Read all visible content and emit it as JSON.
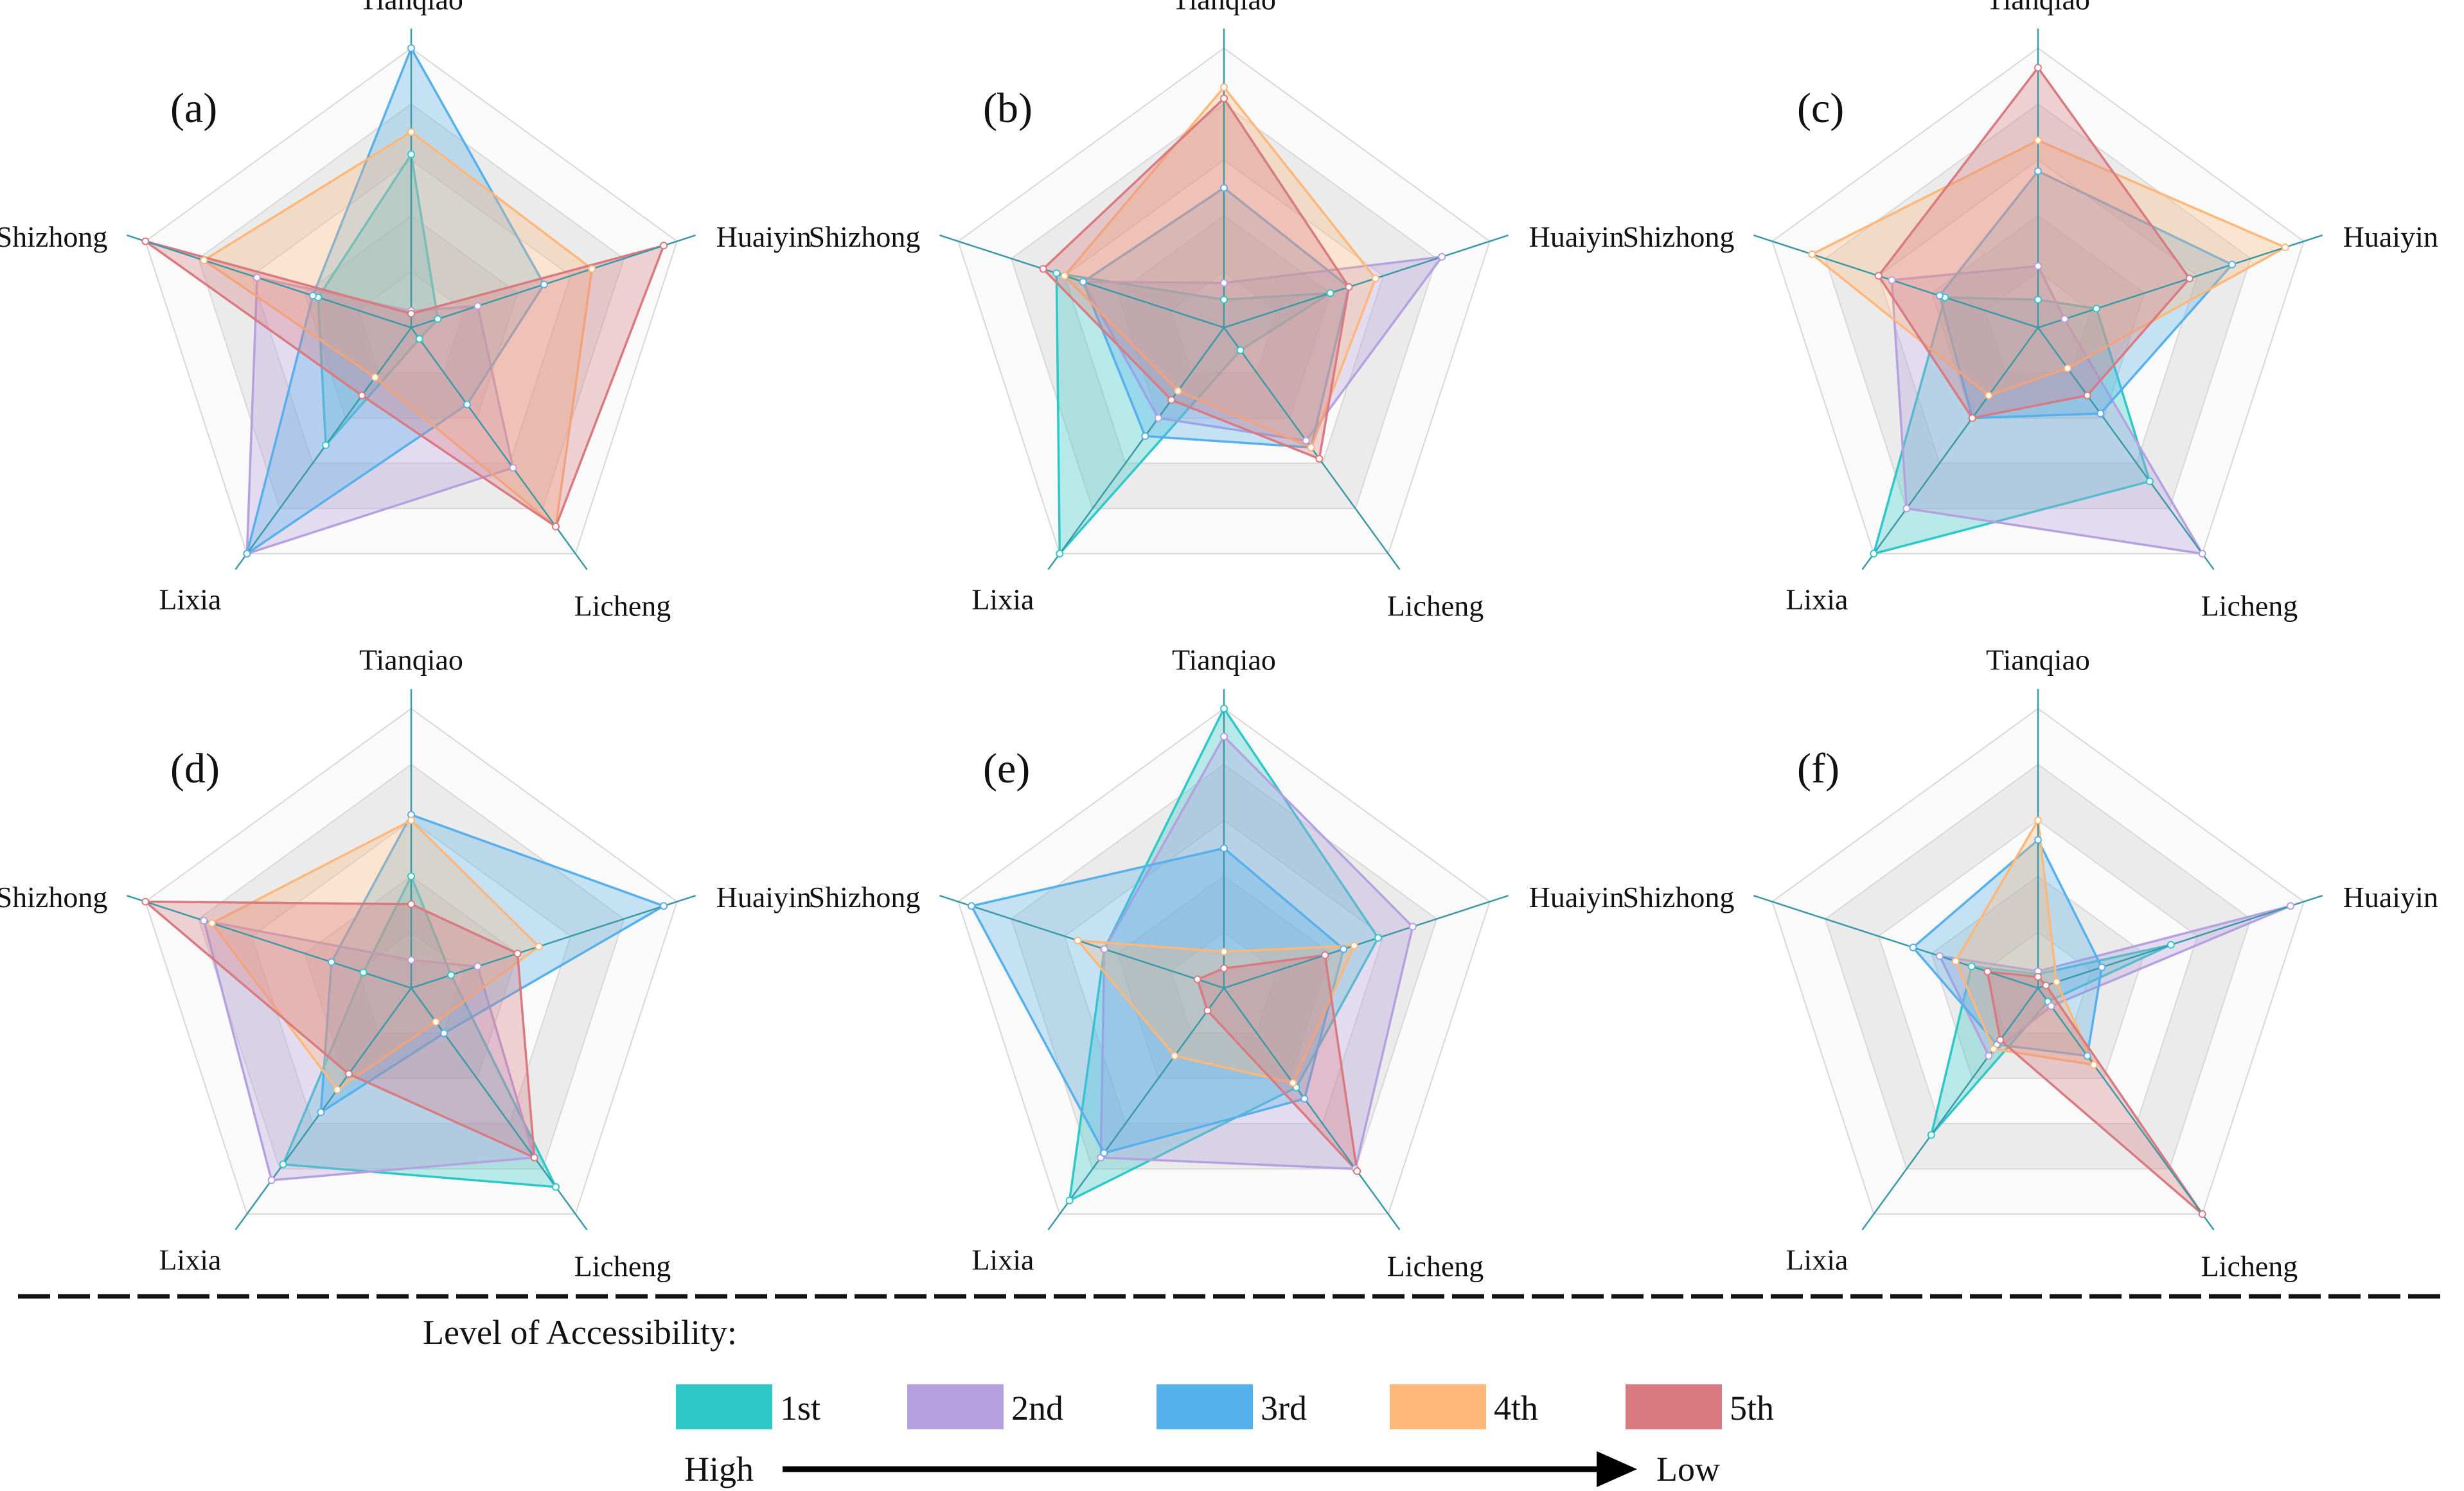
{
  "axes": [
    "Tianqiao",
    "Huaiyin",
    "Licheng",
    "Lixia",
    "Shizhong"
  ],
  "levels": [
    {
      "name": "1st",
      "color": "#2ec8c8"
    },
    {
      "name": "2nd",
      "color": "#b5a0e0"
    },
    {
      "name": "3rd",
      "color": "#56b0ec"
    },
    {
      "name": "4th",
      "color": "#ffb77a"
    },
    {
      "name": "5th",
      "color": "#d97a80"
    }
  ],
  "legend": {
    "title": "Level of Accessibility:",
    "high": "High",
    "low": "Low"
  },
  "chart_data": [
    {
      "type": "radar",
      "panel": "(a)",
      "axes": [
        "Tianqiao",
        "Huaiyin",
        "Licheng",
        "Lixia",
        "Shizhong"
      ],
      "range": [
        0,
        1
      ],
      "series": [
        {
          "name": "1st",
          "values": [
            0.62,
            0.1,
            0.05,
            0.52,
            0.35
          ]
        },
        {
          "name": "2nd",
          "values": [
            0.06,
            0.25,
            0.62,
            1.0,
            0.58
          ]
        },
        {
          "name": "3rd",
          "values": [
            1.0,
            0.5,
            0.34,
            1.0,
            0.37
          ]
        },
        {
          "name": "4th",
          "values": [
            0.7,
            0.68,
            0.88,
            0.22,
            0.78
          ]
        },
        {
          "name": "5th",
          "values": [
            0.05,
            0.95,
            0.88,
            0.3,
            1.0
          ]
        }
      ]
    },
    {
      "type": "radar",
      "panel": "(b)",
      "axes": [
        "Tianqiao",
        "Huaiyin",
        "Licheng",
        "Lixia",
        "Shizhong"
      ],
      "range": [
        0,
        1
      ],
      "series": [
        {
          "name": "1st",
          "values": [
            0.1,
            0.4,
            0.1,
            1.0,
            0.63
          ]
        },
        {
          "name": "2nd",
          "values": [
            0.16,
            0.82,
            0.5,
            0.4,
            0.53
          ]
        },
        {
          "name": "3rd",
          "values": [
            0.5,
            0.47,
            0.53,
            0.48,
            0.53
          ]
        },
        {
          "name": "4th",
          "values": [
            0.86,
            0.57,
            0.53,
            0.28,
            0.6
          ]
        },
        {
          "name": "5th",
          "values": [
            0.82,
            0.47,
            0.58,
            0.32,
            0.68
          ]
        }
      ]
    },
    {
      "type": "radar",
      "panel": "(c)",
      "axes": [
        "Tianqiao",
        "Huaiyin",
        "Licheng",
        "Lixia",
        "Shizhong"
      ],
      "range": [
        0,
        1
      ],
      "series": [
        {
          "name": "1st",
          "values": [
            0.1,
            0.22,
            0.68,
            1.0,
            0.35
          ]
        },
        {
          "name": "2nd",
          "values": [
            0.22,
            0.1,
            1.0,
            0.8,
            0.55
          ]
        },
        {
          "name": "3rd",
          "values": [
            0.56,
            0.73,
            0.38,
            0.4,
            0.37
          ]
        },
        {
          "name": "4th",
          "values": [
            0.67,
            0.93,
            0.18,
            0.3,
            0.85
          ]
        },
        {
          "name": "5th",
          "values": [
            0.93,
            0.57,
            0.3,
            0.4,
            0.6
          ]
        }
      ]
    },
    {
      "type": "radar",
      "panel": "(d)",
      "axes": [
        "Tianqiao",
        "Huaiyin",
        "Licheng",
        "Lixia",
        "Shizhong"
      ],
      "range": [
        0,
        1
      ],
      "series": [
        {
          "name": "1st",
          "values": [
            0.4,
            0.15,
            0.88,
            0.78,
            0.18
          ]
        },
        {
          "name": "2nd",
          "values": [
            0.1,
            0.25,
            0.75,
            0.85,
            0.78
          ]
        },
        {
          "name": "3rd",
          "values": [
            0.62,
            0.95,
            0.2,
            0.55,
            0.3
          ]
        },
        {
          "name": "4th",
          "values": [
            0.6,
            0.48,
            0.15,
            0.45,
            0.75
          ]
        },
        {
          "name": "5th",
          "values": [
            0.3,
            0.4,
            0.75,
            0.38,
            1.0
          ]
        }
      ]
    },
    {
      "type": "radar",
      "panel": "(e)",
      "axes": [
        "Tianqiao",
        "Huaiyin",
        "Licheng",
        "Lixia",
        "Shizhong"
      ],
      "range": [
        0,
        1
      ],
      "series": [
        {
          "name": "1st",
          "values": [
            1.0,
            0.58,
            0.44,
            0.94,
            0.45
          ]
        },
        {
          "name": "2nd",
          "values": [
            0.9,
            0.71,
            0.8,
            0.75,
            0.45
          ]
        },
        {
          "name": "3rd",
          "values": [
            0.5,
            0.45,
            0.49,
            0.73,
            0.95
          ]
        },
        {
          "name": "4th",
          "values": [
            0.13,
            0.49,
            0.42,
            0.3,
            0.55
          ]
        },
        {
          "name": "5th",
          "values": [
            0.07,
            0.38,
            0.81,
            0.1,
            0.1
          ]
        }
      ]
    },
    {
      "type": "radar",
      "panel": "(f)",
      "axes": [
        "Tianqiao",
        "Huaiyin",
        "Licheng",
        "Lixia",
        "Shizhong"
      ],
      "range": [
        0,
        1
      ],
      "series": [
        {
          "name": "1st",
          "values": [
            0.05,
            0.5,
            0.06,
            0.65,
            0.25
          ]
        },
        {
          "name": "2nd",
          "values": [
            0.06,
            0.95,
            0.08,
            0.3,
            0.37
          ]
        },
        {
          "name": "3rd",
          "values": [
            0.53,
            0.24,
            0.3,
            0.25,
            0.47
          ]
        },
        {
          "name": "4th",
          "values": [
            0.6,
            0.07,
            0.34,
            0.27,
            0.31
          ]
        },
        {
          "name": "5th",
          "values": [
            0.04,
            0.03,
            1.0,
            0.23,
            0.19
          ]
        }
      ]
    }
  ]
}
